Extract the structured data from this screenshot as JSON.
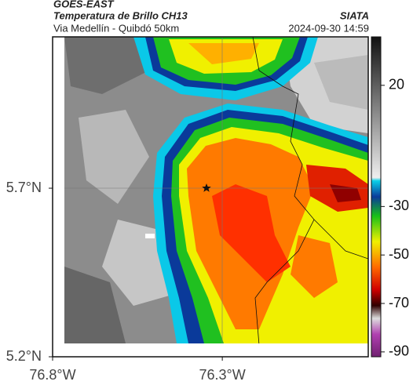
{
  "header": {
    "title": "GOES-EAST",
    "subtitle": "Temperatura de Brillo CH13",
    "location": "Via Medellín - Quibdó 50km",
    "source": "SIATA",
    "datetime": "2024-09-30 14:59"
  },
  "map": {
    "xlim": [
      -76.8,
      -75.87
    ],
    "ylim": [
      5.2,
      6.149
    ],
    "xticks": [
      {
        "value": -76.8,
        "label": "76.8°W"
      },
      {
        "value": -76.3,
        "label": "76.3°W"
      }
    ],
    "yticks": [
      {
        "value": 5.2,
        "label": "5.2°N"
      },
      {
        "value": 5.7,
        "label": "5.7°N"
      }
    ]
  },
  "colorbar": {
    "lim": [
      -92,
      40
    ],
    "ticks": [
      20,
      -30,
      -50,
      -70,
      -90
    ]
  }
}
